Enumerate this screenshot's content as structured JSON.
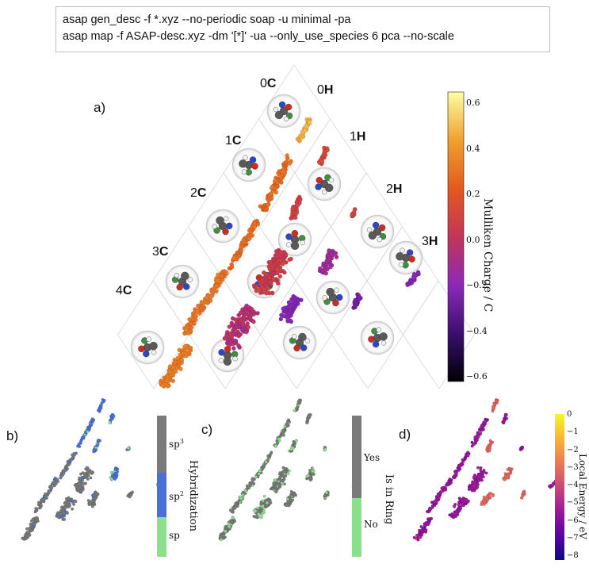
{
  "command": {
    "line1": "asap gen_desc -f *.xyz --no-periodic soap -u minimal -pa",
    "line2": "asap map -f ASAP-desc.xyz -dm '[*]' -ua --only_use_species 6 pca --no-scale"
  },
  "panels": {
    "a": "a)",
    "b": "b)",
    "c": "c)",
    "d": "d)"
  },
  "grid_labels": {
    "c_side": [
      {
        "num": "0",
        "el": "C"
      },
      {
        "num": "1",
        "el": "C"
      },
      {
        "num": "2",
        "el": "C"
      },
      {
        "num": "3",
        "el": "C"
      },
      {
        "num": "4",
        "el": "C"
      }
    ],
    "h_side": [
      {
        "num": "0",
        "el": "H"
      },
      {
        "num": "1",
        "el": "H"
      },
      {
        "num": "2",
        "el": "H"
      },
      {
        "num": "3",
        "el": "H"
      }
    ]
  },
  "colors": {
    "plasma_stops": [
      "#0d0887",
      "#5c01a6",
      "#9c179e",
      "#cc4778",
      "#ed7953",
      "#fdb42f",
      "#f0f921"
    ],
    "inferno_stops": [
      "#000004",
      "#3b0f70",
      "#8c29b8",
      "#c3355a",
      "#e35a1e",
      "#f0a030",
      "#fcffa4"
    ],
    "hybrid_sp3": "#7a7a7a",
    "hybrid_sp2": "#4a6fd9",
    "hybrid_sp": "#8ce08c",
    "ring_yes": "#7a7a7a",
    "ring_no": "#8ce08c",
    "grid_line": "#d8d8d8"
  },
  "chart_data": [
    {
      "panel": "a",
      "type": "scatter",
      "colorbar": {
        "title": "Mulliken Charge / C",
        "range": [
          -0.75,
          0.65
        ],
        "ticks": [
          "0.6",
          "0.4",
          "0.2",
          "0.0",
          "−0.2",
          "−0.4",
          "−0.6"
        ],
        "colormap": "inferno"
      }
    },
    {
      "panel": "b",
      "type": "scatter",
      "colorbar": {
        "title": "Hybridization",
        "categories": [
          "sp3",
          "sp2",
          "sp"
        ]
      }
    },
    {
      "panel": "c",
      "type": "scatter",
      "colorbar": {
        "title": "Is in Ring",
        "categories": [
          "Yes",
          "No"
        ]
      }
    },
    {
      "panel": "d",
      "type": "scatter",
      "colorbar": {
        "title": "Local Energy / eV",
        "range": [
          -8.2,
          0
        ],
        "ticks": [
          "0",
          "−1",
          "−2",
          "−3",
          "−4",
          "−5",
          "−6",
          "−7",
          "−8"
        ],
        "colormap": "plasma"
      }
    }
  ]
}
